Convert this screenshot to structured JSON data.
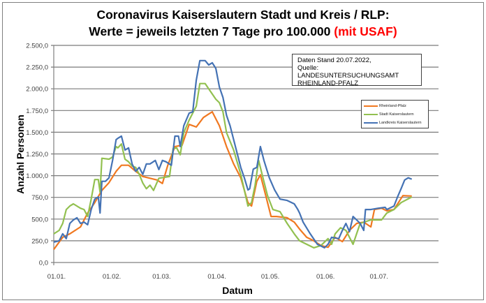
{
  "title_line1": "Coronavirus Kaiserslautern Stadt und Kreis / RLP:",
  "title_line2": "Werte = jeweils letzten 7 Tage pro 100.000",
  "title_highlight": "(mit USAF)",
  "note": {
    "line1": "Daten Stand 20.07.2022,",
    "line2": "Quelle: LANDESUNTERSUCHUNGSAMT",
    "line3": "RHEINLAND-PFALZ"
  },
  "chart_data": {
    "type": "line",
    "title": "Coronavirus Kaiserslautern Stadt und Kreis / RLP: Werte = jeweils letzten 7 Tage pro 100.000 (mit USAF)",
    "xlabel": "Datum",
    "ylabel": "Anzahl Personen",
    "x_unit": "days since 01.01.2022",
    "xlim": [
      0,
      216
    ],
    "ylim": [
      0,
      2500
    ],
    "grid": true,
    "legend_position": "right",
    "yticks": [
      0,
      250,
      500,
      750,
      1000,
      1250,
      1500,
      1750,
      2000,
      2250,
      2500
    ],
    "ytick_labels": [
      "0,0",
      "250,0",
      "500,0",
      "750,0",
      "1.000,0",
      "1.250,0",
      "1.500,0",
      "1.750,0",
      "2.000,0",
      "2.250,0",
      "2.500,0"
    ],
    "xticks": [
      0,
      31,
      59,
      90,
      120,
      151,
      181
    ],
    "xtick_labels": [
      "01.01.",
      "01.02.",
      "01.03.",
      "01.04.",
      "01.05.",
      "01.06.",
      "01.07."
    ],
    "series": [
      {
        "name": "Rheinland-Pfalz",
        "color": "#f07820",
        "points": [
          [
            0,
            150
          ],
          [
            5,
            290
          ],
          [
            9,
            330
          ],
          [
            15,
            410
          ],
          [
            19,
            570
          ],
          [
            23,
            690
          ],
          [
            27,
            830
          ],
          [
            31,
            920
          ],
          [
            35,
            1050
          ],
          [
            38,
            1120
          ],
          [
            42,
            1120
          ],
          [
            46,
            1050
          ],
          [
            50,
            990
          ],
          [
            54,
            970
          ],
          [
            58,
            950
          ],
          [
            61,
            910
          ],
          [
            64,
            1120
          ],
          [
            68,
            1335
          ],
          [
            72,
            1350
          ],
          [
            76,
            1590
          ],
          [
            80,
            1560
          ],
          [
            84,
            1670
          ],
          [
            87,
            1710
          ],
          [
            89,
            1735
          ],
          [
            93,
            1575
          ],
          [
            97,
            1335
          ],
          [
            101,
            1135
          ],
          [
            105,
            975
          ],
          [
            109,
            690
          ],
          [
            111,
            650
          ],
          [
            114,
            935
          ],
          [
            116,
            1010
          ],
          [
            119,
            770
          ],
          [
            122,
            530
          ],
          [
            125,
            530
          ],
          [
            131,
            515
          ],
          [
            135,
            465
          ],
          [
            138,
            385
          ],
          [
            142,
            290
          ],
          [
            146,
            250
          ],
          [
            150,
            195
          ],
          [
            154,
            175
          ],
          [
            158,
            290
          ],
          [
            162,
            240
          ],
          [
            166,
            370
          ],
          [
            170,
            450
          ],
          [
            174,
            465
          ],
          [
            178,
            410
          ],
          [
            180,
            610
          ],
          [
            184,
            625
          ],
          [
            187,
            595
          ],
          [
            191,
            610
          ],
          [
            196,
            770
          ],
          [
            201,
            765
          ]
        ]
      },
      {
        "name": "Stadt Kaiserslautern",
        "color": "#92c050",
        "points": [
          [
            0,
            330
          ],
          [
            3,
            370
          ],
          [
            5,
            450
          ],
          [
            7,
            610
          ],
          [
            9,
            650
          ],
          [
            11,
            675
          ],
          [
            15,
            625
          ],
          [
            17,
            610
          ],
          [
            19,
            530
          ],
          [
            21,
            730
          ],
          [
            23,
            955
          ],
          [
            25,
            955
          ],
          [
            26,
            810
          ],
          [
            27,
            1200
          ],
          [
            31,
            1190
          ],
          [
            33,
            1215
          ],
          [
            35,
            1335
          ],
          [
            36,
            1320
          ],
          [
            38,
            1365
          ],
          [
            40,
            1190
          ],
          [
            42,
            1160
          ],
          [
            44,
            1110
          ],
          [
            46,
            1095
          ],
          [
            48,
            1015
          ],
          [
            50,
            915
          ],
          [
            52,
            850
          ],
          [
            54,
            890
          ],
          [
            56,
            830
          ],
          [
            59,
            970
          ],
          [
            62,
            980
          ],
          [
            65,
            990
          ],
          [
            67,
            1310
          ],
          [
            69,
            1320
          ],
          [
            71,
            1240
          ],
          [
            73,
            1495
          ],
          [
            76,
            1640
          ],
          [
            78,
            1720
          ],
          [
            80,
            1800
          ],
          [
            82,
            2060
          ],
          [
            85,
            2060
          ],
          [
            87,
            2000
          ],
          [
            91,
            1880
          ],
          [
            93,
            1840
          ],
          [
            95,
            1735
          ],
          [
            97,
            1495
          ],
          [
            101,
            1295
          ],
          [
            105,
            1015
          ],
          [
            109,
            650
          ],
          [
            111,
            690
          ],
          [
            113,
            890
          ],
          [
            115,
            1175
          ],
          [
            117,
            1010
          ],
          [
            120,
            770
          ],
          [
            123,
            610
          ],
          [
            127,
            585
          ],
          [
            131,
            450
          ],
          [
            135,
            330
          ],
          [
            138,
            250
          ],
          [
            142,
            210
          ],
          [
            146,
            170
          ],
          [
            150,
            195
          ],
          [
            154,
            275
          ],
          [
            156,
            210
          ],
          [
            158,
            330
          ],
          [
            161,
            400
          ],
          [
            164,
            370
          ],
          [
            168,
            210
          ],
          [
            170,
            330
          ],
          [
            172,
            450
          ],
          [
            178,
            490
          ],
          [
            184,
            490
          ],
          [
            187,
            570
          ],
          [
            191,
            610
          ],
          [
            195,
            690
          ],
          [
            201,
            755
          ]
        ]
      },
      {
        "name": "Landkreis Kaiserslautern",
        "color": "#4472b4",
        "points": [
          [
            0,
            235
          ],
          [
            3,
            250
          ],
          [
            5,
            330
          ],
          [
            7,
            275
          ],
          [
            9,
            450
          ],
          [
            11,
            490
          ],
          [
            13,
            515
          ],
          [
            15,
            450
          ],
          [
            17,
            465
          ],
          [
            19,
            435
          ],
          [
            21,
            610
          ],
          [
            23,
            730
          ],
          [
            25,
            755
          ],
          [
            26,
            570
          ],
          [
            27,
            935
          ],
          [
            29,
            935
          ],
          [
            31,
            975
          ],
          [
            33,
            1175
          ],
          [
            35,
            1415
          ],
          [
            36,
            1430
          ],
          [
            38,
            1455
          ],
          [
            40,
            1295
          ],
          [
            42,
            1320
          ],
          [
            44,
            1135
          ],
          [
            46,
            1050
          ],
          [
            48,
            1095
          ],
          [
            50,
            1015
          ],
          [
            52,
            1135
          ],
          [
            54,
            1135
          ],
          [
            57,
            1175
          ],
          [
            59,
            1070
          ],
          [
            61,
            1175
          ],
          [
            63,
            1160
          ],
          [
            66,
            1120
          ],
          [
            68,
            1455
          ],
          [
            70,
            1455
          ],
          [
            71,
            1335
          ],
          [
            73,
            1575
          ],
          [
            76,
            1720
          ],
          [
            78,
            1735
          ],
          [
            80,
            2100
          ],
          [
            82,
            2325
          ],
          [
            85,
            2325
          ],
          [
            87,
            2275
          ],
          [
            89,
            2300
          ],
          [
            91,
            2235
          ],
          [
            93,
            2020
          ],
          [
            95,
            1900
          ],
          [
            97,
            1695
          ],
          [
            99,
            1575
          ],
          [
            101,
            1415
          ],
          [
            103,
            1255
          ],
          [
            105,
            1095
          ],
          [
            107,
            975
          ],
          [
            109,
            835
          ],
          [
            110,
            850
          ],
          [
            112,
            1075
          ],
          [
            114,
            1095
          ],
          [
            116,
            1335
          ],
          [
            118,
            1175
          ],
          [
            121,
            975
          ],
          [
            124,
            835
          ],
          [
            127,
            730
          ],
          [
            131,
            715
          ],
          [
            135,
            675
          ],
          [
            137,
            610
          ],
          [
            138,
            570
          ],
          [
            140,
            465
          ],
          [
            144,
            330
          ],
          [
            148,
            210
          ],
          [
            152,
            170
          ],
          [
            154,
            210
          ],
          [
            156,
            290
          ],
          [
            160,
            275
          ],
          [
            162,
            370
          ],
          [
            164,
            450
          ],
          [
            166,
            355
          ],
          [
            168,
            530
          ],
          [
            170,
            490
          ],
          [
            172,
            450
          ],
          [
            174,
            370
          ],
          [
            175,
            610
          ],
          [
            178,
            610
          ],
          [
            182,
            625
          ],
          [
            186,
            635
          ],
          [
            187,
            610
          ],
          [
            191,
            650
          ],
          [
            193,
            755
          ],
          [
            195,
            850
          ],
          [
            197,
            950
          ],
          [
            199,
            975
          ],
          [
            201,
            960
          ]
        ]
      }
    ]
  }
}
